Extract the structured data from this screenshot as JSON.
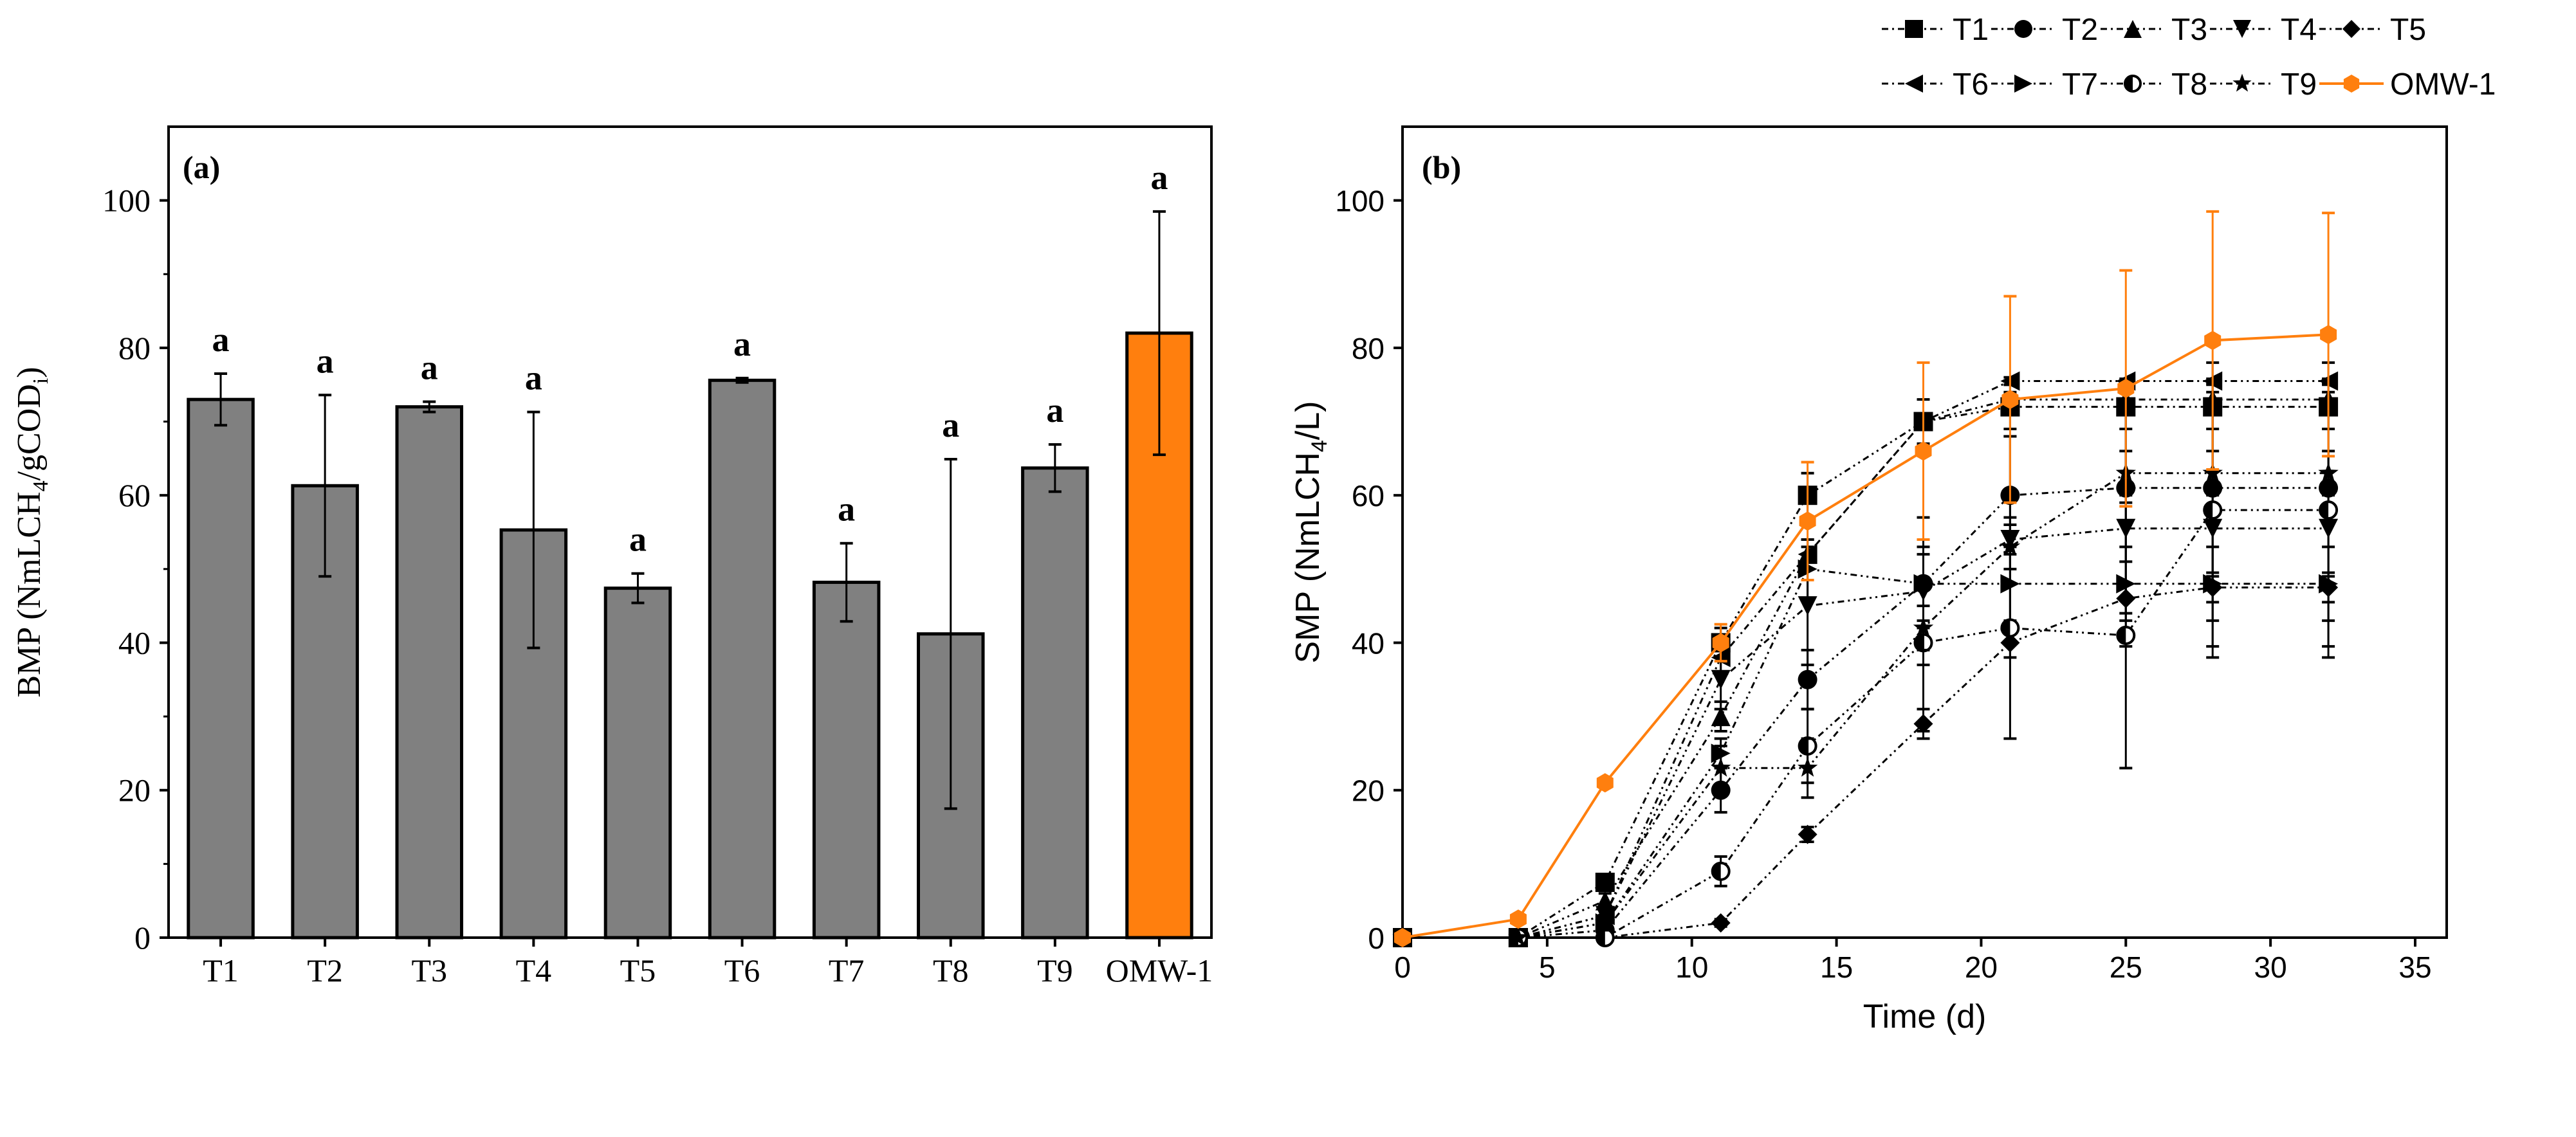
{
  "chart_data": [
    {
      "type": "bar",
      "panel_label": "(a)",
      "title": "",
      "xlabel": "",
      "ylabel": "BMP (NmLCH4/gCODi)",
      "ylabel_parts": {
        "pre": "BMP (NmLCH",
        "sub1": "4",
        "mid": "/gCOD",
        "sub2": "i",
        "post": ")"
      },
      "ylim": [
        0,
        110
      ],
      "yticks": [
        0,
        20,
        40,
        60,
        80,
        100
      ],
      "categories": [
        "T1",
        "T2",
        "T3",
        "T4",
        "T5",
        "T6",
        "T7",
        "T8",
        "T9",
        "OMW-1"
      ],
      "values": [
        73.0,
        61.3,
        72.0,
        55.3,
        47.4,
        75.6,
        48.2,
        41.2,
        63.7,
        82.0
      ],
      "errors": [
        3.5,
        12.3,
        0.7,
        16.0,
        2.0,
        0.3,
        5.3,
        23.7,
        3.2,
        16.5
      ],
      "significance_letters": [
        "a",
        "a",
        "a",
        "a",
        "a",
        "a",
        "a",
        "a",
        "a",
        "a"
      ],
      "colors": {
        "default": "#808080",
        "highlight": "#ff7f0e"
      },
      "highlight_category": "OMW-1",
      "grid": false
    },
    {
      "type": "line",
      "panel_label": "(b)",
      "title": "",
      "xlabel": "Time (d)",
      "ylabel": "SMP (NmLCH4/L)",
      "ylabel_parts": {
        "pre": "SMP (NmLCH",
        "sub1": "4",
        "post": "/L)"
      },
      "xlim": [
        0,
        35
      ],
      "ylim": [
        0,
        110
      ],
      "xticks": [
        0,
        5,
        10,
        15,
        20,
        25,
        30,
        35
      ],
      "yticks": [
        0,
        20,
        40,
        60,
        80,
        100
      ],
      "x": [
        0,
        4,
        7,
        11,
        14,
        18,
        21,
        25,
        28,
        32
      ],
      "legend_position": "top-right-outside",
      "grid": false,
      "series": [
        {
          "name": "T1",
          "marker": "square",
          "color": "#000000",
          "values": [
            0,
            0,
            7.5,
            40,
            60,
            70,
            72,
            72,
            72,
            72
          ],
          "errors": [
            0,
            0,
            1,
            2,
            3,
            3,
            3,
            3,
            3,
            3
          ]
        },
        {
          "name": "T2",
          "marker": "circle",
          "color": "#000000",
          "values": [
            0,
            0,
            1,
            20,
            35,
            48,
            60,
            61,
            61,
            61
          ],
          "errors": [
            0,
            0,
            1,
            3,
            4,
            6,
            8,
            10,
            12,
            12
          ]
        },
        {
          "name": "T3",
          "marker": "triangle-up",
          "color": "#000000",
          "values": [
            0,
            0,
            5,
            30,
            52,
            70,
            73,
            73,
            73,
            73
          ],
          "errors": [
            0,
            0,
            1,
            2,
            2,
            1,
            1,
            1,
            1,
            1
          ]
        },
        {
          "name": "T4",
          "marker": "triangle-down",
          "color": "#000000",
          "values": [
            0,
            0,
            3,
            35,
            45,
            47,
            54,
            55.5,
            55.5,
            55.5
          ],
          "errors": [
            0,
            0,
            1,
            4,
            8,
            10,
            14,
            16,
            16,
            16
          ]
        },
        {
          "name": "T5",
          "marker": "diamond",
          "color": "#000000",
          "values": [
            0,
            0,
            0,
            2,
            14,
            29,
            40,
            46,
            47.5,
            47.5
          ],
          "errors": [
            0,
            0,
            0,
            0.5,
            1,
            2,
            2,
            2,
            2,
            2
          ]
        },
        {
          "name": "T6",
          "marker": "triangle-left",
          "color": "#000000",
          "values": [
            0,
            0,
            3,
            38,
            52,
            70,
            75.5,
            75.5,
            75.5,
            75.5
          ],
          "errors": [
            0,
            0,
            1,
            2,
            2,
            1,
            0.5,
            0.3,
            0.3,
            0.3
          ]
        },
        {
          "name": "T7",
          "marker": "triangle-right",
          "color": "#000000",
          "values": [
            0,
            0,
            2,
            25,
            50,
            48,
            48,
            48,
            48,
            48
          ],
          "errors": [
            0,
            0,
            1,
            2,
            4,
            5,
            5,
            5,
            5,
            5
          ]
        },
        {
          "name": "T8",
          "marker": "half-circle",
          "color": "#000000",
          "values": [
            0,
            0,
            0,
            9,
            26,
            40,
            42,
            41,
            58,
            58
          ],
          "errors": [
            0,
            0,
            0,
            2,
            5,
            12,
            15,
            18,
            20,
            20
          ]
        },
        {
          "name": "T9",
          "marker": "star",
          "color": "#000000",
          "values": [
            0,
            0,
            2,
            23,
            23,
            42,
            53,
            63,
            63,
            63
          ],
          "errors": [
            0,
            0,
            1,
            3,
            4,
            3,
            3,
            3,
            3,
            3
          ]
        },
        {
          "name": "OMW-1",
          "marker": "hexagon",
          "color": "#ff7f0e",
          "values": [
            0,
            2.5,
            21,
            40,
            56.5,
            66,
            73,
            74.5,
            81,
            81.8
          ],
          "errors": [
            0,
            0,
            0,
            2.5,
            8,
            12,
            14,
            16,
            17.5,
            16.5
          ]
        }
      ]
    }
  ]
}
